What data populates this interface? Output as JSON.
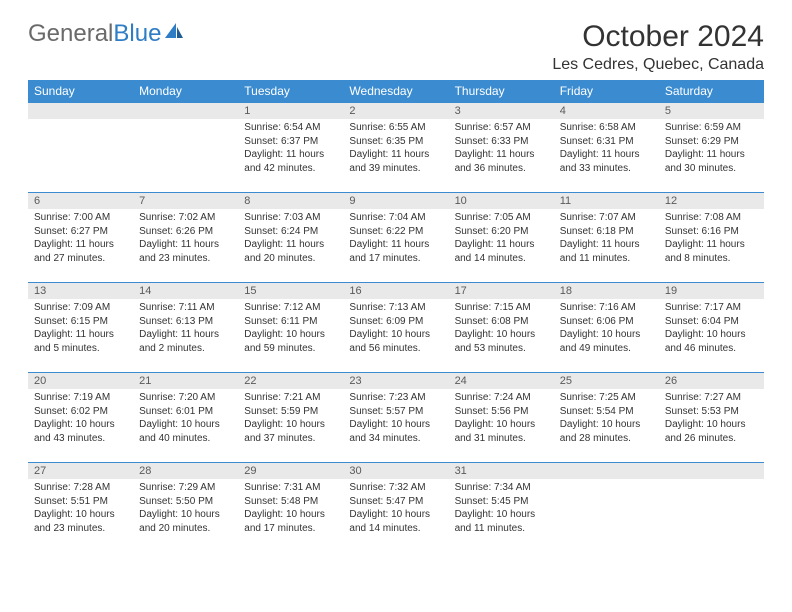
{
  "logo": {
    "text_gray": "General",
    "text_blue": "Blue"
  },
  "title": "October 2024",
  "location": "Les Cedres, Quebec, Canada",
  "colors": {
    "header_bg": "#3a8bd0",
    "header_text": "#ffffff",
    "daynum_bg": "#e9e9e9",
    "border": "#3a8bd0",
    "logo_gray": "#6a6a6a",
    "logo_blue": "#2f7dc4"
  },
  "weekdays": [
    "Sunday",
    "Monday",
    "Tuesday",
    "Wednesday",
    "Thursday",
    "Friday",
    "Saturday"
  ],
  "weeks": [
    [
      {
        "n": "",
        "sr": "",
        "ss": "",
        "dl": ""
      },
      {
        "n": "",
        "sr": "",
        "ss": "",
        "dl": ""
      },
      {
        "n": "1",
        "sr": "Sunrise: 6:54 AM",
        "ss": "Sunset: 6:37 PM",
        "dl": "Daylight: 11 hours and 42 minutes."
      },
      {
        "n": "2",
        "sr": "Sunrise: 6:55 AM",
        "ss": "Sunset: 6:35 PM",
        "dl": "Daylight: 11 hours and 39 minutes."
      },
      {
        "n": "3",
        "sr": "Sunrise: 6:57 AM",
        "ss": "Sunset: 6:33 PM",
        "dl": "Daylight: 11 hours and 36 minutes."
      },
      {
        "n": "4",
        "sr": "Sunrise: 6:58 AM",
        "ss": "Sunset: 6:31 PM",
        "dl": "Daylight: 11 hours and 33 minutes."
      },
      {
        "n": "5",
        "sr": "Sunrise: 6:59 AM",
        "ss": "Sunset: 6:29 PM",
        "dl": "Daylight: 11 hours and 30 minutes."
      }
    ],
    [
      {
        "n": "6",
        "sr": "Sunrise: 7:00 AM",
        "ss": "Sunset: 6:27 PM",
        "dl": "Daylight: 11 hours and 27 minutes."
      },
      {
        "n": "7",
        "sr": "Sunrise: 7:02 AM",
        "ss": "Sunset: 6:26 PM",
        "dl": "Daylight: 11 hours and 23 minutes."
      },
      {
        "n": "8",
        "sr": "Sunrise: 7:03 AM",
        "ss": "Sunset: 6:24 PM",
        "dl": "Daylight: 11 hours and 20 minutes."
      },
      {
        "n": "9",
        "sr": "Sunrise: 7:04 AM",
        "ss": "Sunset: 6:22 PM",
        "dl": "Daylight: 11 hours and 17 minutes."
      },
      {
        "n": "10",
        "sr": "Sunrise: 7:05 AM",
        "ss": "Sunset: 6:20 PM",
        "dl": "Daylight: 11 hours and 14 minutes."
      },
      {
        "n": "11",
        "sr": "Sunrise: 7:07 AM",
        "ss": "Sunset: 6:18 PM",
        "dl": "Daylight: 11 hours and 11 minutes."
      },
      {
        "n": "12",
        "sr": "Sunrise: 7:08 AM",
        "ss": "Sunset: 6:16 PM",
        "dl": "Daylight: 11 hours and 8 minutes."
      }
    ],
    [
      {
        "n": "13",
        "sr": "Sunrise: 7:09 AM",
        "ss": "Sunset: 6:15 PM",
        "dl": "Daylight: 11 hours and 5 minutes."
      },
      {
        "n": "14",
        "sr": "Sunrise: 7:11 AM",
        "ss": "Sunset: 6:13 PM",
        "dl": "Daylight: 11 hours and 2 minutes."
      },
      {
        "n": "15",
        "sr": "Sunrise: 7:12 AM",
        "ss": "Sunset: 6:11 PM",
        "dl": "Daylight: 10 hours and 59 minutes."
      },
      {
        "n": "16",
        "sr": "Sunrise: 7:13 AM",
        "ss": "Sunset: 6:09 PM",
        "dl": "Daylight: 10 hours and 56 minutes."
      },
      {
        "n": "17",
        "sr": "Sunrise: 7:15 AM",
        "ss": "Sunset: 6:08 PM",
        "dl": "Daylight: 10 hours and 53 minutes."
      },
      {
        "n": "18",
        "sr": "Sunrise: 7:16 AM",
        "ss": "Sunset: 6:06 PM",
        "dl": "Daylight: 10 hours and 49 minutes."
      },
      {
        "n": "19",
        "sr": "Sunrise: 7:17 AM",
        "ss": "Sunset: 6:04 PM",
        "dl": "Daylight: 10 hours and 46 minutes."
      }
    ],
    [
      {
        "n": "20",
        "sr": "Sunrise: 7:19 AM",
        "ss": "Sunset: 6:02 PM",
        "dl": "Daylight: 10 hours and 43 minutes."
      },
      {
        "n": "21",
        "sr": "Sunrise: 7:20 AM",
        "ss": "Sunset: 6:01 PM",
        "dl": "Daylight: 10 hours and 40 minutes."
      },
      {
        "n": "22",
        "sr": "Sunrise: 7:21 AM",
        "ss": "Sunset: 5:59 PM",
        "dl": "Daylight: 10 hours and 37 minutes."
      },
      {
        "n": "23",
        "sr": "Sunrise: 7:23 AM",
        "ss": "Sunset: 5:57 PM",
        "dl": "Daylight: 10 hours and 34 minutes."
      },
      {
        "n": "24",
        "sr": "Sunrise: 7:24 AM",
        "ss": "Sunset: 5:56 PM",
        "dl": "Daylight: 10 hours and 31 minutes."
      },
      {
        "n": "25",
        "sr": "Sunrise: 7:25 AM",
        "ss": "Sunset: 5:54 PM",
        "dl": "Daylight: 10 hours and 28 minutes."
      },
      {
        "n": "26",
        "sr": "Sunrise: 7:27 AM",
        "ss": "Sunset: 5:53 PM",
        "dl": "Daylight: 10 hours and 26 minutes."
      }
    ],
    [
      {
        "n": "27",
        "sr": "Sunrise: 7:28 AM",
        "ss": "Sunset: 5:51 PM",
        "dl": "Daylight: 10 hours and 23 minutes."
      },
      {
        "n": "28",
        "sr": "Sunrise: 7:29 AM",
        "ss": "Sunset: 5:50 PM",
        "dl": "Daylight: 10 hours and 20 minutes."
      },
      {
        "n": "29",
        "sr": "Sunrise: 7:31 AM",
        "ss": "Sunset: 5:48 PM",
        "dl": "Daylight: 10 hours and 17 minutes."
      },
      {
        "n": "30",
        "sr": "Sunrise: 7:32 AM",
        "ss": "Sunset: 5:47 PM",
        "dl": "Daylight: 10 hours and 14 minutes."
      },
      {
        "n": "31",
        "sr": "Sunrise: 7:34 AM",
        "ss": "Sunset: 5:45 PM",
        "dl": "Daylight: 10 hours and 11 minutes."
      },
      {
        "n": "",
        "sr": "",
        "ss": "",
        "dl": ""
      },
      {
        "n": "",
        "sr": "",
        "ss": "",
        "dl": ""
      }
    ]
  ]
}
